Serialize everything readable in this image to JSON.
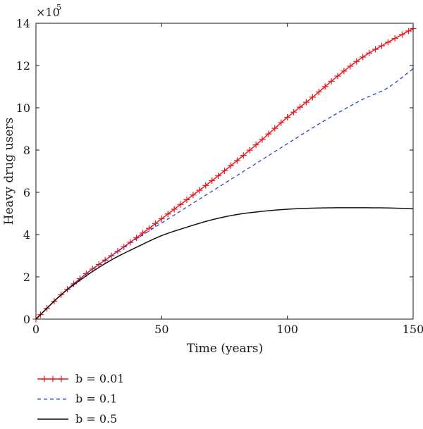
{
  "chart_data": {
    "type": "line",
    "xlabel": "Time (years)",
    "ylabel": "Heavy drug users",
    "y_multiplier_label": "×10",
    "y_multiplier_exponent": "5",
    "xlim": [
      0,
      150
    ],
    "ylim": [
      0,
      14
    ],
    "x_ticks": [
      0,
      50,
      100,
      150
    ],
    "x_tick_labels": [
      "0",
      "50",
      "100",
      "150"
    ],
    "y_ticks": [
      0,
      2,
      4,
      6,
      8,
      10,
      12,
      14
    ],
    "y_tick_labels": [
      "0",
      "2",
      "4",
      "6",
      "8",
      "10",
      "12",
      "14"
    ],
    "grid": false,
    "legend_position": "bottom",
    "series": [
      {
        "name": "b = 0.01",
        "color": "#e8191f",
        "line_style": "solid",
        "marker": "plus",
        "x": [
          0,
          10,
          20,
          30,
          40,
          50,
          60,
          70,
          80,
          90,
          100,
          110,
          120,
          130,
          140,
          150
        ],
        "y": [
          0,
          1.15,
          2.15,
          3.0,
          3.85,
          4.75,
          5.65,
          6.55,
          7.5,
          8.5,
          9.55,
          10.5,
          11.5,
          12.4,
          13.1,
          13.75
        ]
      },
      {
        "name": "b = 0.1",
        "color": "#1f3fc4",
        "line_style": "dashed",
        "marker": "none",
        "x": [
          0,
          10,
          20,
          30,
          40,
          50,
          60,
          70,
          80,
          90,
          100,
          110,
          120,
          130,
          140,
          150
        ],
        "y": [
          0,
          1.15,
          2.15,
          3.0,
          3.8,
          4.55,
          5.3,
          6.05,
          6.8,
          7.55,
          8.3,
          9.05,
          9.75,
          10.4,
          10.95,
          11.85
        ]
      },
      {
        "name": "b = 0.5",
        "color": "#111111",
        "line_style": "solid",
        "marker": "none",
        "x": [
          0,
          10,
          20,
          30,
          40,
          50,
          60,
          70,
          80,
          90,
          100,
          110,
          120,
          130,
          140,
          150
        ],
        "y": [
          0,
          1.15,
          2.05,
          2.8,
          3.4,
          3.95,
          4.35,
          4.7,
          4.95,
          5.1,
          5.2,
          5.25,
          5.27,
          5.27,
          5.26,
          5.22
        ]
      }
    ]
  }
}
